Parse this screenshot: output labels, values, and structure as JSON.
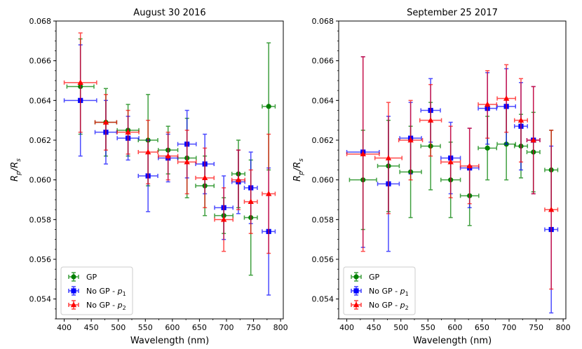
{
  "chart_data": [
    {
      "type": "scatter",
      "title": "August 30 2016",
      "xlabel": "Wavelength (nm)",
      "ylabel_main": "R",
      "ylabel_sub1": "p",
      "ylabel_mid": "/R",
      "ylabel_sub2": "s",
      "xlim": [
        385,
        805
      ],
      "ylim": [
        0.053,
        0.068
      ],
      "xticks": [
        400,
        450,
        500,
        550,
        600,
        650,
        700,
        750,
        800
      ],
      "yticks": [
        0.054,
        0.056,
        0.058,
        0.06,
        0.062,
        0.064,
        0.066,
        0.068
      ],
      "legend_position": "lower-left",
      "series": [
        {
          "name": "GP",
          "name_sub": "",
          "color": "#008000",
          "marker": "circle",
          "points": [
            {
              "x": 430,
              "xerr": 25,
              "y": 0.0647,
              "yerr": 0.0024
            },
            {
              "x": 477,
              "xerr": 20,
              "y": 0.0629,
              "yerr": 0.0017
            },
            {
              "x": 518,
              "xerr": 20,
              "y": 0.0625,
              "yerr": 0.0013
            },
            {
              "x": 555,
              "xerr": 18,
              "y": 0.062,
              "yerr": 0.0023
            },
            {
              "x": 592,
              "xerr": 18,
              "y": 0.0615,
              "yerr": 0.0012
            },
            {
              "x": 627,
              "xerr": 17,
              "y": 0.0611,
              "yerr": 0.002
            },
            {
              "x": 660,
              "xerr": 17,
              "y": 0.0597,
              "yerr": 0.0015
            },
            {
              "x": 695,
              "xerr": 17,
              "y": 0.0582,
              "yerr": 0.0009
            },
            {
              "x": 722,
              "xerr": 12,
              "y": 0.0603,
              "yerr": 0.0017
            },
            {
              "x": 745,
              "xerr": 12,
              "y": 0.0581,
              "yerr": 0.0029
            },
            {
              "x": 778,
              "xerr": 12,
              "y": 0.0637,
              "yerr": 0.0032
            }
          ]
        },
        {
          "name": "No GP - ",
          "name_sub": "1",
          "color": "#0000ff",
          "marker": "square",
          "points": [
            {
              "x": 430,
              "xerr": 30,
              "y": 0.064,
              "yerr": 0.0028
            },
            {
              "x": 477,
              "xerr": 20,
              "y": 0.0624,
              "yerr": 0.0016
            },
            {
              "x": 518,
              "xerr": 20,
              "y": 0.0621,
              "yerr": 0.0011
            },
            {
              "x": 555,
              "xerr": 18,
              "y": 0.0602,
              "yerr": 0.0018
            },
            {
              "x": 592,
              "xerr": 18,
              "y": 0.0611,
              "yerr": 0.0012
            },
            {
              "x": 627,
              "xerr": 17,
              "y": 0.0618,
              "yerr": 0.0017
            },
            {
              "x": 660,
              "xerr": 17,
              "y": 0.0608,
              "yerr": 0.0015
            },
            {
              "x": 695,
              "xerr": 17,
              "y": 0.0586,
              "yerr": 0.0016
            },
            {
              "x": 722,
              "xerr": 12,
              "y": 0.0599,
              "yerr": 0.0016
            },
            {
              "x": 745,
              "xerr": 12,
              "y": 0.0596,
              "yerr": 0.0018
            },
            {
              "x": 778,
              "xerr": 12,
              "y": 0.0574,
              "yerr": 0.0032
            }
          ]
        },
        {
          "name": "No GP - ",
          "name_sub": "2",
          "color": "#ff0000",
          "marker": "triangle",
          "points": [
            {
              "x": 430,
              "xerr": 30,
              "y": 0.0649,
              "yerr": 0.0025
            },
            {
              "x": 477,
              "xerr": 20,
              "y": 0.0629,
              "yerr": 0.0014
            },
            {
              "x": 518,
              "xerr": 20,
              "y": 0.0624,
              "yerr": 0.0011
            },
            {
              "x": 555,
              "xerr": 18,
              "y": 0.0614,
              "yerr": 0.0016
            },
            {
              "x": 592,
              "xerr": 18,
              "y": 0.0612,
              "yerr": 0.0012
            },
            {
              "x": 627,
              "xerr": 17,
              "y": 0.0609,
              "yerr": 0.0016
            },
            {
              "x": 660,
              "xerr": 17,
              "y": 0.0601,
              "yerr": 0.0015
            },
            {
              "x": 695,
              "xerr": 17,
              "y": 0.058,
              "yerr": 0.0016
            },
            {
              "x": 722,
              "xerr": 12,
              "y": 0.06,
              "yerr": 0.0015
            },
            {
              "x": 745,
              "xerr": 12,
              "y": 0.0589,
              "yerr": 0.0016
            },
            {
              "x": 778,
              "xerr": 12,
              "y": 0.0593,
              "yerr": 0.003
            }
          ]
        }
      ]
    },
    {
      "type": "scatter",
      "title": "September 25 2017",
      "xlabel": "Wavelength (nm)",
      "ylabel_main": "R",
      "ylabel_sub1": "p",
      "ylabel_mid": "/R",
      "ylabel_sub2": "s",
      "xlim": [
        385,
        805
      ],
      "ylim": [
        0.053,
        0.068
      ],
      "xticks": [
        400,
        450,
        500,
        550,
        600,
        650,
        700,
        750,
        800
      ],
      "yticks": [
        0.054,
        0.056,
        0.058,
        0.06,
        0.062,
        0.064,
        0.066,
        0.068
      ],
      "legend_position": "lower-left",
      "series": [
        {
          "name": "GP",
          "name_sub": "",
          "color": "#008000",
          "marker": "circle",
          "points": [
            {
              "x": 430,
              "xerr": 25,
              "y": 0.06,
              "yerr": 0.0025
            },
            {
              "x": 477,
              "xerr": 20,
              "y": 0.0607,
              "yerr": 0.0023
            },
            {
              "x": 518,
              "xerr": 20,
              "y": 0.0604,
              "yerr": 0.0023
            },
            {
              "x": 555,
              "xerr": 18,
              "y": 0.0617,
              "yerr": 0.0022
            },
            {
              "x": 592,
              "xerr": 18,
              "y": 0.06,
              "yerr": 0.0019
            },
            {
              "x": 627,
              "xerr": 17,
              "y": 0.0592,
              "yerr": 0.0015
            },
            {
              "x": 660,
              "xerr": 17,
              "y": 0.0616,
              "yerr": 0.0016
            },
            {
              "x": 695,
              "xerr": 17,
              "y": 0.0618,
              "yerr": 0.0018
            },
            {
              "x": 722,
              "xerr": 12,
              "y": 0.0617,
              "yerr": 0.0016
            },
            {
              "x": 745,
              "xerr": 12,
              "y": 0.0614,
              "yerr": 0.002
            },
            {
              "x": 778,
              "xerr": 12,
              "y": 0.0605,
              "yerr": 0.002
            }
          ]
        },
        {
          "name": "No GP - ",
          "name_sub": "1",
          "color": "#0000ff",
          "marker": "square",
          "points": [
            {
              "x": 430,
              "xerr": 30,
              "y": 0.0614,
              "yerr": 0.0048
            },
            {
              "x": 477,
              "xerr": 20,
              "y": 0.0598,
              "yerr": 0.0034
            },
            {
              "x": 518,
              "xerr": 20,
              "y": 0.0621,
              "yerr": 0.0018
            },
            {
              "x": 555,
              "xerr": 18,
              "y": 0.0635,
              "yerr": 0.0016
            },
            {
              "x": 592,
              "xerr": 18,
              "y": 0.0611,
              "yerr": 0.0018
            },
            {
              "x": 627,
              "xerr": 17,
              "y": 0.0606,
              "yerr": 0.002
            },
            {
              "x": 660,
              "xerr": 17,
              "y": 0.0636,
              "yerr": 0.0018
            },
            {
              "x": 695,
              "xerr": 17,
              "y": 0.0637,
              "yerr": 0.0019
            },
            {
              "x": 722,
              "xerr": 12,
              "y": 0.0627,
              "yerr": 0.0022
            },
            {
              "x": 745,
              "xerr": 12,
              "y": 0.062,
              "yerr": 0.0027
            },
            {
              "x": 778,
              "xerr": 12,
              "y": 0.0575,
              "yerr": 0.0042
            }
          ]
        },
        {
          "name": "No GP - ",
          "name_sub": "2",
          "color": "#ff0000",
          "marker": "triangle",
          "points": [
            {
              "x": 430,
              "xerr": 30,
              "y": 0.0613,
              "yerr": 0.0049
            },
            {
              "x": 477,
              "xerr": 25,
              "y": 0.0611,
              "yerr": 0.0028
            },
            {
              "x": 518,
              "xerr": 22,
              "y": 0.062,
              "yerr": 0.002
            },
            {
              "x": 555,
              "xerr": 20,
              "y": 0.063,
              "yerr": 0.0018
            },
            {
              "x": 592,
              "xerr": 18,
              "y": 0.0609,
              "yerr": 0.0018
            },
            {
              "x": 627,
              "xerr": 17,
              "y": 0.0607,
              "yerr": 0.0019
            },
            {
              "x": 660,
              "xerr": 17,
              "y": 0.0638,
              "yerr": 0.0017
            },
            {
              "x": 695,
              "xerr": 17,
              "y": 0.0641,
              "yerr": 0.0017
            },
            {
              "x": 722,
              "xerr": 12,
              "y": 0.063,
              "yerr": 0.0021
            },
            {
              "x": 745,
              "xerr": 12,
              "y": 0.062,
              "yerr": 0.0027
            },
            {
              "x": 778,
              "xerr": 12,
              "y": 0.0585,
              "yerr": 0.004
            }
          ]
        }
      ]
    }
  ]
}
